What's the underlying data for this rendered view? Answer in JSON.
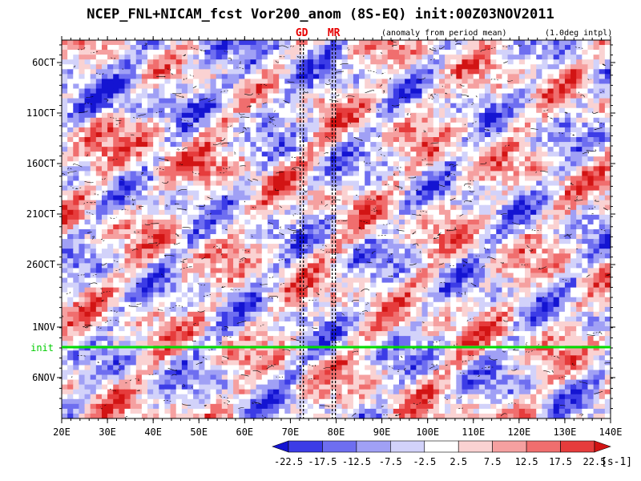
{
  "chart_data": {
    "type": "heatmap",
    "title": "NCEP_FNL+NICAM_fcst Vor200_anom (8S-EQ) init:00Z03NOV2011",
    "subtitle": "(anomaly from period mean)",
    "interp_note": "(1.0deg intpl)",
    "x_ticks": [
      "20E",
      "30E",
      "40E",
      "50E",
      "60E",
      "70E",
      "80E",
      "90E",
      "100E",
      "110E",
      "120E",
      "130E",
      "140E"
    ],
    "x_values": [
      20,
      30,
      40,
      50,
      60,
      70,
      80,
      90,
      100,
      110,
      120,
      130,
      140
    ],
    "y_ticks": [
      "6OCT",
      "11OCT",
      "16OCT",
      "21OCT",
      "26OCT",
      "1NOV",
      "6NOV"
    ],
    "xlim": [
      20,
      140
    ],
    "markers": [
      {
        "label": "GD",
        "lon": 72.5
      },
      {
        "label": "MR",
        "lon": 79.5
      }
    ],
    "init_label": "init",
    "colorbar": {
      "levels": [
        "-22.5",
        "-17.5",
        "-12.5",
        "-7.5",
        "-2.5",
        "2.5",
        "7.5",
        "12.5",
        "17.5",
        "22.5"
      ],
      "colors": [
        "#1414d2",
        "#3c3ce6",
        "#6e6ef0",
        "#a0a0f5",
        "#d2d2fa",
        "#ffffff",
        "#fad2d2",
        "#f5a0a0",
        "#f06e6e",
        "#e63c3c",
        "#d21414"
      ],
      "unit": "[s-1]"
    }
  }
}
